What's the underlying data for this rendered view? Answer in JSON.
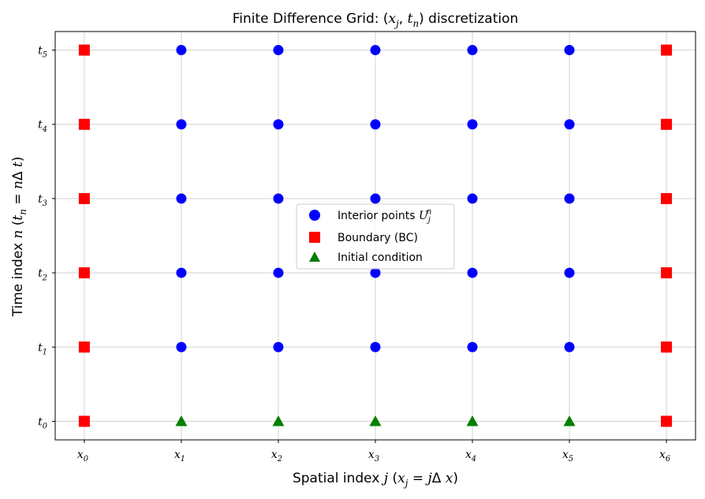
{
  "chart_data": {
    "type": "scatter",
    "title": "Finite Difference Grid: $(x_j, t_n)$ discretization",
    "xlabel": "Spatial index $j$  $(x_j = j\\Delta x)$",
    "ylabel": "Time index $n$  $(t_n = n\\Delta t)$",
    "xlim": [
      -0.3,
      6.3
    ],
    "ylim": [
      -0.25,
      5.25
    ],
    "grid": true,
    "legend_position": "center",
    "x_ticks": [
      0,
      1,
      2,
      3,
      4,
      5,
      6
    ],
    "x_tick_labels": [
      "$x_0$",
      "$x_1$",
      "$x_2$",
      "$x_3$",
      "$x_4$",
      "$x_5$",
      "$x_6$"
    ],
    "y_ticks": [
      0,
      1,
      2,
      3,
      4,
      5
    ],
    "y_tick_labels": [
      "$t_0$",
      "$t_1$",
      "$t_2$",
      "$t_3$",
      "$t_4$",
      "$t_5$"
    ],
    "series": [
      {
        "name": "Interior points $U_j^n$",
        "marker": "circle",
        "color": "#0000ff",
        "points": [
          [
            1,
            1
          ],
          [
            2,
            1
          ],
          [
            3,
            1
          ],
          [
            4,
            1
          ],
          [
            5,
            1
          ],
          [
            1,
            2
          ],
          [
            2,
            2
          ],
          [
            3,
            2
          ],
          [
            4,
            2
          ],
          [
            5,
            2
          ],
          [
            1,
            3
          ],
          [
            2,
            3
          ],
          [
            3,
            3
          ],
          [
            4,
            3
          ],
          [
            5,
            3
          ],
          [
            1,
            4
          ],
          [
            2,
            4
          ],
          [
            3,
            4
          ],
          [
            4,
            4
          ],
          [
            5,
            4
          ],
          [
            1,
            5
          ],
          [
            2,
            5
          ],
          [
            3,
            5
          ],
          [
            4,
            5
          ],
          [
            5,
            5
          ]
        ]
      },
      {
        "name": "Boundary (BC)",
        "marker": "square",
        "color": "#ff0000",
        "points": [
          [
            0,
            0
          ],
          [
            0,
            1
          ],
          [
            0,
            2
          ],
          [
            0,
            3
          ],
          [
            0,
            4
          ],
          [
            0,
            5
          ],
          [
            6,
            0
          ],
          [
            6,
            1
          ],
          [
            6,
            2
          ],
          [
            6,
            3
          ],
          [
            6,
            4
          ],
          [
            6,
            5
          ]
        ]
      },
      {
        "name": "Initial condition",
        "marker": "triangle",
        "color": "#008000",
        "points": [
          [
            1,
            0
          ],
          [
            2,
            0
          ],
          [
            3,
            0
          ],
          [
            4,
            0
          ],
          [
            5,
            0
          ]
        ]
      }
    ]
  }
}
